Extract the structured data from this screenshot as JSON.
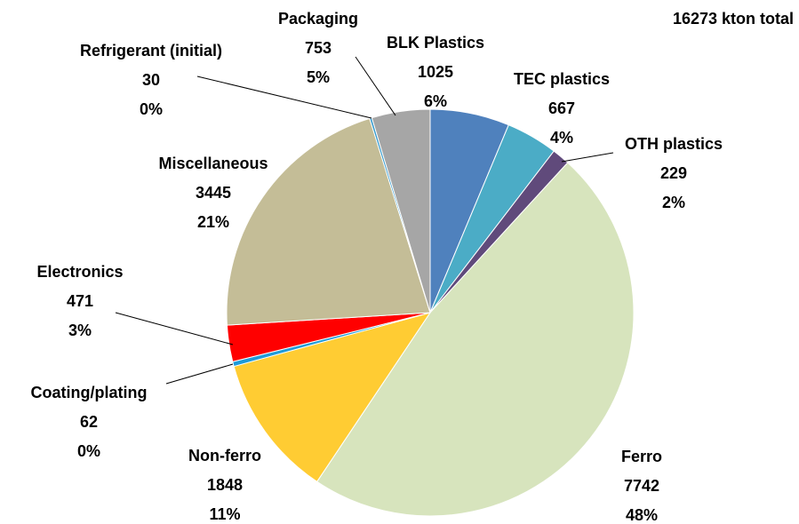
{
  "chart_data": {
    "type": "pie",
    "title": "16273 kton total",
    "categories": [
      "BLK Plastics",
      "TEC plastics",
      "OTH plastics",
      "Ferro",
      "Non-ferro",
      "Coating/plating",
      "Electronics",
      "Miscellaneous",
      "Refrigerant (initial)",
      "Packaging"
    ],
    "values": [
      1025,
      667,
      229,
      7742,
      1848,
      62,
      471,
      3445,
      30,
      753
    ],
    "percent_labels": [
      "6%",
      "4%",
      "2%",
      "48%",
      "11%",
      "0%",
      "3%",
      "21%",
      "0%",
      "5%"
    ],
    "colors": [
      "#4f81bd",
      "#4bacc6",
      "#604a7b",
      "#d7e4bd",
      "#ffcc33",
      "#1f9bd9",
      "#ff0000",
      "#c4bd97",
      "#3399cc",
      "#a6a6a6"
    ]
  }
}
